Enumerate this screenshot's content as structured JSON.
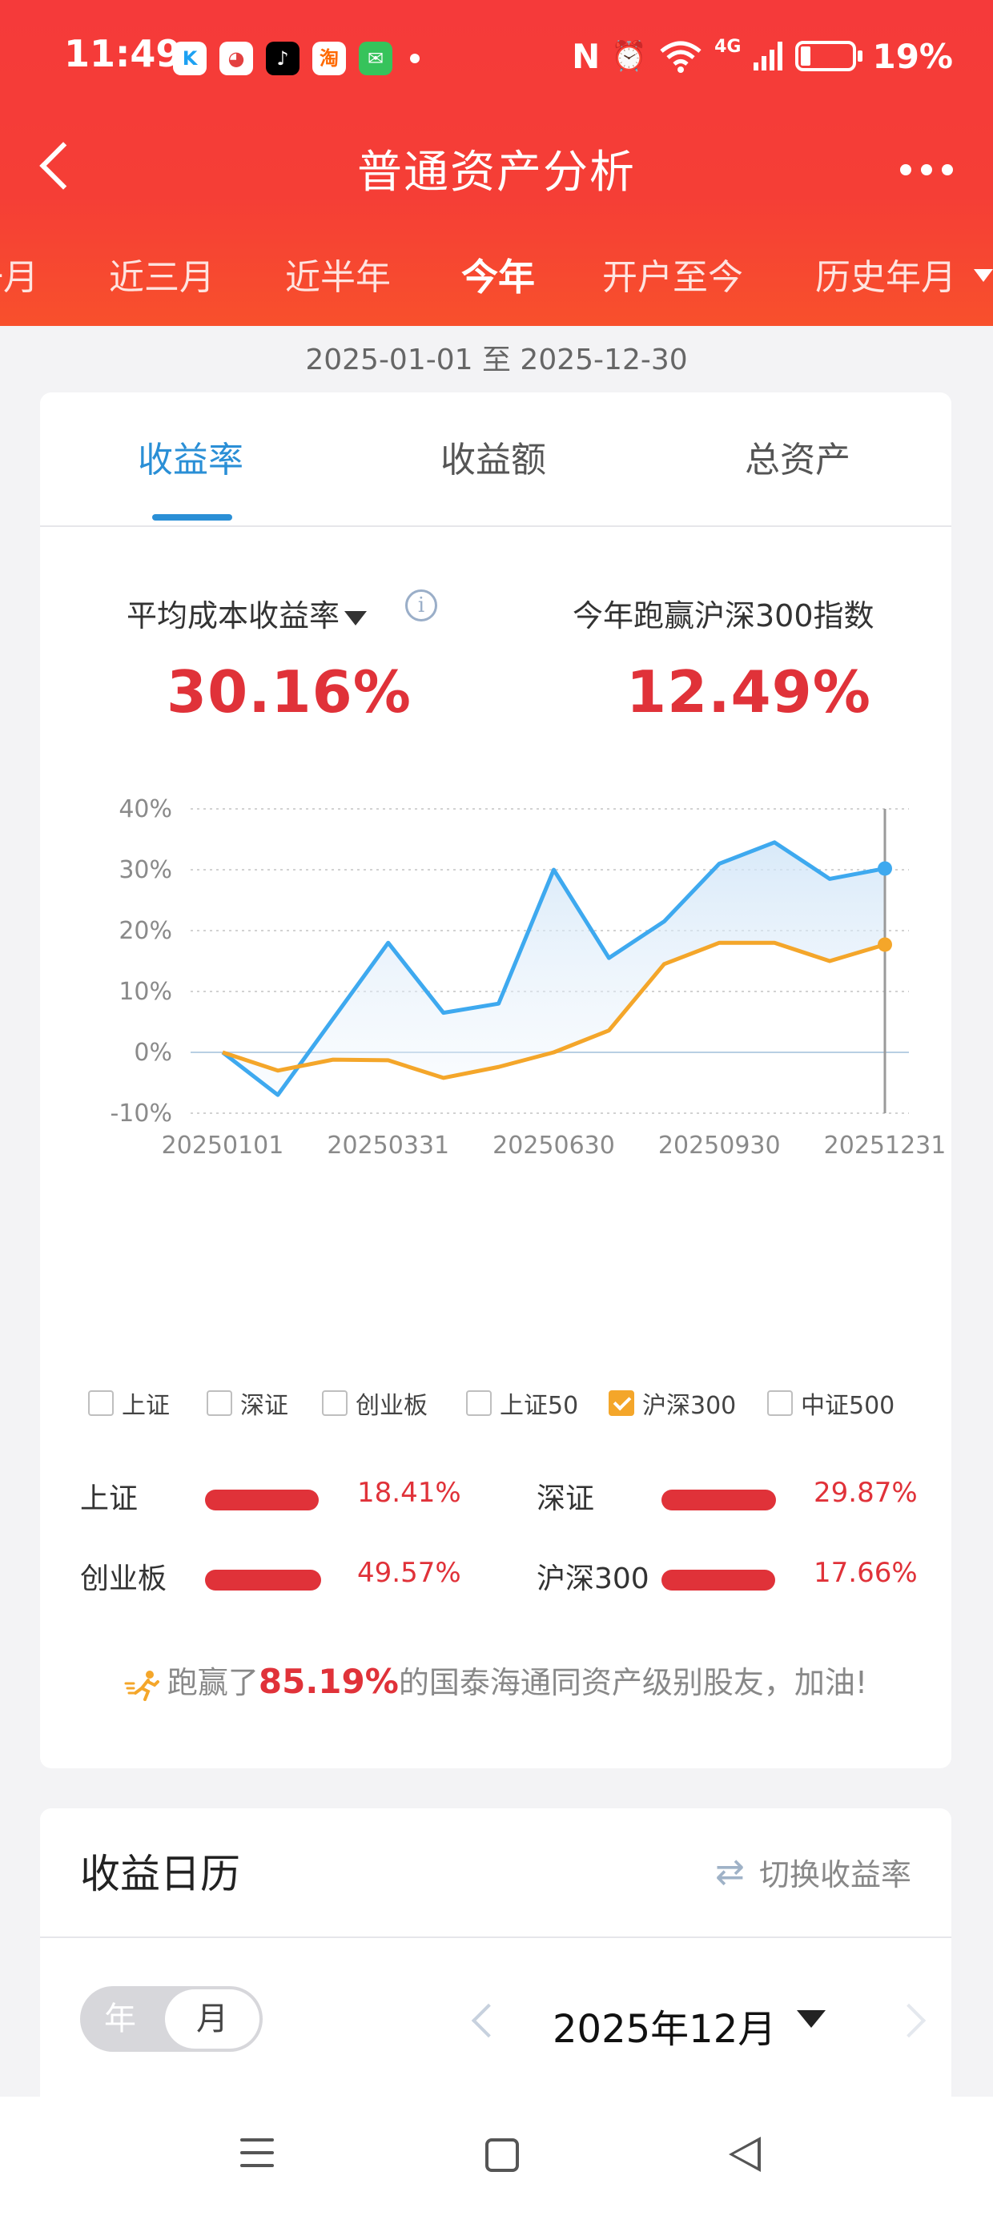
{
  "status_bar": {
    "time": "11:49",
    "apps": [
      {
        "icon": "kuaishou-icon",
        "label": "K",
        "bg": "#ffffff",
        "fg": "#1da1f2"
      },
      {
        "icon": "panda-app-icon",
        "label": "◕",
        "bg": "#ffffff",
        "fg": "#e34040"
      },
      {
        "icon": "tiktok-icon",
        "label": "♪",
        "bg": "#000000",
        "fg": "#ffffff"
      },
      {
        "icon": "taobao-icon",
        "label": "淘",
        "bg": "#ffffff",
        "fg": "#ff6a00"
      },
      {
        "icon": "messages-icon",
        "label": "✉",
        "bg": "#36c35b",
        "fg": "#ffffff"
      }
    ],
    "nfc": "N",
    "alarm_icon": "⏰",
    "wifi_icon": "Wi-Fi",
    "network": "4G",
    "battery": "19%"
  },
  "nav": {
    "title": "普通资产分析"
  },
  "period_tabs": [
    {
      "label": "一月",
      "active": false
    },
    {
      "label": "近三月",
      "active": false
    },
    {
      "label": "近半年",
      "active": false
    },
    {
      "label": "今年",
      "active": true
    },
    {
      "label": "开户至今",
      "active": false
    },
    {
      "label": "历史年月",
      "active": false
    }
  ],
  "date_range": "2025-01-01 至 2025-12-30",
  "metric_tabs": [
    {
      "label": "收益率",
      "active": true
    },
    {
      "label": "收益额",
      "active": false
    },
    {
      "label": "总资产",
      "active": false
    }
  ],
  "metrics": {
    "left_label": "平均成本收益率",
    "left_value": "30.16%",
    "right_label": "今年跑赢沪深300指数",
    "right_value": "12.49%"
  },
  "chart_data": {
    "type": "line",
    "x": [
      "20250101",
      "20250201",
      "20250301",
      "20250331",
      "20250430",
      "20250531",
      "20250630",
      "20250731",
      "20250831",
      "20250930",
      "20251031",
      "20251130",
      "20251231"
    ],
    "x_ticks": [
      "20250101",
      "20250331",
      "20250630",
      "20250930",
      "20251231"
    ],
    "y_ticks": [
      "40%",
      "30%",
      "20%",
      "10%",
      "0%",
      "-10%"
    ],
    "ylim": [
      -10,
      40
    ],
    "grid": true,
    "series": [
      {
        "name": "",
        "color": "#3ea9ef",
        "values": [
          0,
          -7,
          5.5,
          18,
          6.5,
          8,
          30,
          15.5,
          21.5,
          31,
          34.5,
          28.5,
          30.2
        ]
      },
      {
        "name": "沪深300",
        "color": "#f4a62a",
        "values": [
          0,
          -3,
          -1.2,
          -1.3,
          -4.2,
          -2.4,
          0,
          3.6,
          14.5,
          18,
          18,
          15,
          17.7
        ]
      }
    ]
  },
  "legend": [
    {
      "label": "上证",
      "checked": false
    },
    {
      "label": "深证",
      "checked": false
    },
    {
      "label": "创业板",
      "checked": false
    },
    {
      "label": "上证50",
      "checked": false
    },
    {
      "label": "沪深300",
      "checked": true
    },
    {
      "label": "中证500",
      "checked": false
    }
  ],
  "indices": [
    {
      "name": "上证",
      "value": "18.41%",
      "pct": 18.41
    },
    {
      "name": "深证",
      "value": "29.87%",
      "pct": 29.87
    },
    {
      "name": "创业板",
      "value": "49.57%",
      "pct": 49.57
    },
    {
      "name": "沪深300",
      "value": "17.66%",
      "pct": 17.66
    }
  ],
  "beat": {
    "prefix": "跑赢了",
    "percent": "85.19%",
    "suffix": "的国泰海通同资产级别股友，加油!"
  },
  "calendar": {
    "title": "收益日历",
    "switch_label": "切换收益率",
    "year_label": "年",
    "month_label": "月",
    "current": "2025年12月"
  },
  "colors": {
    "accent_red": "#e03239",
    "header_red": "#f53a3a",
    "active_blue": "#2a8fd6",
    "hs300_orange": "#f4a62a"
  }
}
